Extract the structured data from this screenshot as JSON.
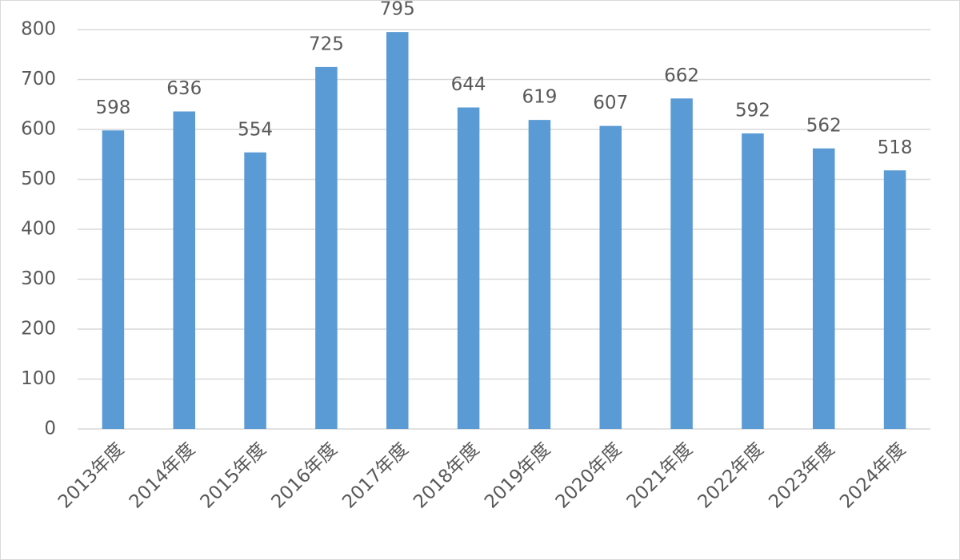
{
  "chart_data": {
    "type": "bar",
    "categories": [
      "2013年度",
      "2014年度",
      "2015年度",
      "2016年度",
      "2017年度",
      "2018年度",
      "2019年度",
      "2020年度",
      "2021年度",
      "2022年度",
      "2023年度",
      "2024年度"
    ],
    "values": [
      598,
      636,
      554,
      725,
      795,
      644,
      619,
      607,
      662,
      592,
      562,
      518
    ],
    "color": "#5b9bd5",
    "ylim": [
      0,
      800
    ],
    "yticks": [
      0,
      100,
      200,
      300,
      400,
      500,
      600,
      700,
      800
    ],
    "grid": true
  }
}
